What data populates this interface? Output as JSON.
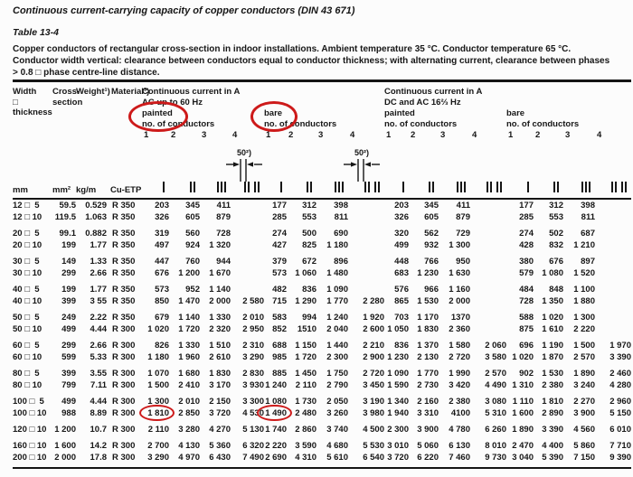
{
  "page": {
    "title": "Continuous current-carrying capacity of copper conductors (DIN 43 671)",
    "table_label": "Table 13-4",
    "intro": "Copper conductors of rectangular cross-section in indoor installations. Ambient temperature 35 °C. Conductor temperature 65 °C.\nConductor width vertical: clearance between conductors equal to conductor thickness; with alternating current, clearance between phases\n> 0.8 □ phase centre-line distance."
  },
  "header": {
    "col_width": "Width\n□\nthickness",
    "col_cross": "Cross-\nsection",
    "col_weight": "Weight¹)",
    "col_material": "Material³)",
    "group_ac": "Continuous current in A\nAC up to 60 Hz",
    "group_dc": "Continuous current in A\nDC and AC 16⅔ Hz",
    "painted": "painted",
    "bare": "bare",
    "no_of_conductors": "no. of conductors",
    "cond_numbers": [
      "1",
      "2",
      "3",
      "4"
    ],
    "dim_label": "50²)"
  },
  "units": {
    "width": "mm",
    "cross": "mm²",
    "weight": "kg/m",
    "material": "Cu-ETP",
    "icons": [
      "1 bar",
      "2 bars",
      "3 bars",
      "2×2 bars"
    ]
  },
  "annotations": {
    "circle_color": "#cd1a1a",
    "circled_headers": [
      "painted (AC)",
      "bare (AC)"
    ],
    "circled_values": [
      "1 810",
      "1 490"
    ]
  },
  "table": {
    "rows": [
      {
        "size": "12 □  5",
        "cross": "59.5",
        "weight": "0.529",
        "material": "R 350",
        "gap": false,
        "circled": [],
        "values": [
          "203",
          "345",
          "411",
          "",
          "177",
          "312",
          "398",
          "",
          "203",
          "345",
          "411",
          "",
          "177",
          "312",
          "398",
          ""
        ]
      },
      {
        "size": "12 □ 10",
        "cross": "119.5",
        "weight": "1.063",
        "material": "R 350",
        "gap": false,
        "circled": [],
        "values": [
          "326",
          "605",
          "879",
          "",
          "285",
          "553",
          "811",
          "",
          "326",
          "605",
          "879",
          "",
          "285",
          "553",
          "811",
          ""
        ]
      },
      {
        "size": "20 □  5",
        "cross": "99.1",
        "weight": "0.882",
        "material": "R 350",
        "gap": true,
        "circled": [],
        "values": [
          "319",
          "560",
          "728",
          "",
          "274",
          "500",
          "690",
          "",
          "320",
          "562",
          "729",
          "",
          "274",
          "502",
          "687",
          ""
        ]
      },
      {
        "size": "20 □ 10",
        "cross": "199",
        "weight": "1.77",
        "material": "R 350",
        "gap": false,
        "circled": [],
        "values": [
          "497",
          "924",
          "1 320",
          "",
          "427",
          "825",
          "1 180",
          "",
          "499",
          "932",
          "1 300",
          "",
          "428",
          "832",
          "1 210",
          ""
        ]
      },
      {
        "size": "30 □  5",
        "cross": "149",
        "weight": "1.33",
        "material": "R 350",
        "gap": true,
        "circled": [],
        "values": [
          "447",
          "760",
          "944",
          "",
          "379",
          "672",
          "896",
          "",
          "448",
          "766",
          "950",
          "",
          "380",
          "676",
          "897",
          ""
        ]
      },
      {
        "size": "30 □ 10",
        "cross": "299",
        "weight": "2.66",
        "material": "R 350",
        "gap": false,
        "circled": [],
        "values": [
          "676",
          "1 200",
          "1 670",
          "",
          "573",
          "1 060",
          "1 480",
          "",
          "683",
          "1 230",
          "1 630",
          "",
          "579",
          "1 080",
          "1 520",
          ""
        ]
      },
      {
        "size": "40 □  5",
        "cross": "199",
        "weight": "1.77",
        "material": "R 350",
        "gap": true,
        "circled": [],
        "values": [
          "573",
          "952",
          "1 140",
          "",
          "482",
          "836",
          "1 090",
          "",
          "576",
          "966",
          "1 160",
          "",
          "484",
          "848",
          "1 100",
          ""
        ]
      },
      {
        "size": "40 □ 10",
        "cross": "399",
        "weight": "3 55",
        "material": "R 350",
        "gap": false,
        "circled": [],
        "values": [
          "850",
          "1 470",
          "2 000",
          "2 580",
          "715",
          "1 290",
          "1 770",
          "2 280",
          "865",
          "1 530",
          "2 000",
          "",
          "728",
          "1 350",
          "1 880",
          ""
        ]
      },
      {
        "size": "50 □  5",
        "cross": "249",
        "weight": "2.22",
        "material": "R 350",
        "gap": true,
        "circled": [],
        "values": [
          "679",
          "1 140",
          "1 330",
          "2 010",
          "583",
          "994",
          "1 240",
          "1 920",
          "703",
          "1 170",
          "1370",
          "",
          "588",
          "1 020",
          "1 300",
          ""
        ]
      },
      {
        "size": "50 □ 10",
        "cross": "499",
        "weight": "4.44",
        "material": "R 300",
        "gap": false,
        "circled": [],
        "values": [
          "1 020",
          "1 720",
          "2 320",
          "2 950",
          "852",
          "1510",
          "2 040",
          "2 600",
          "1 050",
          "1 830",
          "2 360",
          "",
          "875",
          "1 610",
          "2 220",
          ""
        ]
      },
      {
        "size": "60 □  5",
        "cross": "299",
        "weight": "2.66",
        "material": "R 300",
        "gap": true,
        "circled": [],
        "values": [
          "826",
          "1 330",
          "1 510",
          "2 310",
          "688",
          "1 150",
          "1 440",
          "2 210",
          "836",
          "1 370",
          "1 580",
          "2 060",
          "696",
          "1 190",
          "1 500",
          "1 970"
        ]
      },
      {
        "size": "60 □ 10",
        "cross": "599",
        "weight": "5.33",
        "material": "R 300",
        "gap": false,
        "circled": [],
        "values": [
          "1 180",
          "1 960",
          "2 610",
          "3 290",
          "985",
          "1 720",
          "2 300",
          "2 900",
          "1 230",
          "2 130",
          "2 720",
          "3 580",
          "1 020",
          "1 870",
          "2 570",
          "3 390"
        ]
      },
      {
        "size": "80 □  5",
        "cross": "399",
        "weight": "3.55",
        "material": "R 300",
        "gap": true,
        "circled": [],
        "values": [
          "1 070",
          "1 680",
          "1 830",
          "2 830",
          "885",
          "1 450",
          "1 750",
          "2 720",
          "1 090",
          "1 770",
          "1 990",
          "2 570",
          "902",
          "1 530",
          "1 890",
          "2 460"
        ]
      },
      {
        "size": "80 □ 10",
        "cross": "799",
        "weight": "7.11",
        "material": "R 300",
        "gap": false,
        "circled": [],
        "values": [
          "1 500",
          "2 410",
          "3 170",
          "3 930",
          "1 240",
          "2 110",
          "2 790",
          "3 450",
          "1 590",
          "2 730",
          "3 420",
          "4 490",
          "1 310",
          "2 380",
          "3 240",
          "4 280"
        ]
      },
      {
        "size": "100 □  5",
        "cross": "499",
        "weight": "4.44",
        "material": "R 300",
        "gap": true,
        "circled": [],
        "values": [
          "1 300",
          "2 010",
          "2 150",
          "3 300",
          "1 080",
          "1 730",
          "2 050",
          "3 190",
          "1 340",
          "2 160",
          "2 380",
          "3 080",
          "1 110",
          "1 810",
          "2 270",
          "2 960"
        ]
      },
      {
        "size": "100 □ 10",
        "cross": "988",
        "weight": "8.89",
        "material": "R 300",
        "gap": false,
        "circled": [
          0,
          4
        ],
        "values": [
          "1 810",
          "2 850",
          "3 720",
          "4 530",
          "1 490",
          "2 480",
          "3 260",
          "3 980",
          "1 940",
          "3 310",
          "4100",
          "5 310",
          "1 600",
          "2 890",
          "3 900",
          "5 150"
        ]
      },
      {
        "size": "120 □ 10",
        "cross": "1 200",
        "weight": "10.7",
        "material": "R 300",
        "gap": true,
        "circled": [],
        "values": [
          "2 110",
          "3 280",
          "4 270",
          "5 130",
          "1 740",
          "2 860",
          "3 740",
          "4 500",
          "2 300",
          "3 900",
          "4 780",
          "6 260",
          "1 890",
          "3 390",
          "4 560",
          "6 010"
        ]
      },
      {
        "size": "160 □ 10",
        "cross": "1 600",
        "weight": "14.2",
        "material": "R 300",
        "gap": true,
        "circled": [],
        "values": [
          "2 700",
          "4 130",
          "5 360",
          "6 320",
          "2 220",
          "3 590",
          "4 680",
          "5 530",
          "3 010",
          "5 060",
          "6 130",
          "8 010",
          "2 470",
          "4 400",
          "5 860",
          "7 710"
        ]
      },
      {
        "size": "200 □ 10",
        "cross": "2 000",
        "weight": "17.8",
        "material": "R 300",
        "gap": false,
        "circled": [],
        "values": [
          "3 290",
          "4 970",
          "6 430",
          "7 490",
          "2 690",
          "4 310",
          "5 610",
          "6 540",
          "3 720",
          "6 220",
          "7 460",
          "9 730",
          "3 040",
          "5 390",
          "7 150",
          "9 390"
        ]
      }
    ]
  }
}
